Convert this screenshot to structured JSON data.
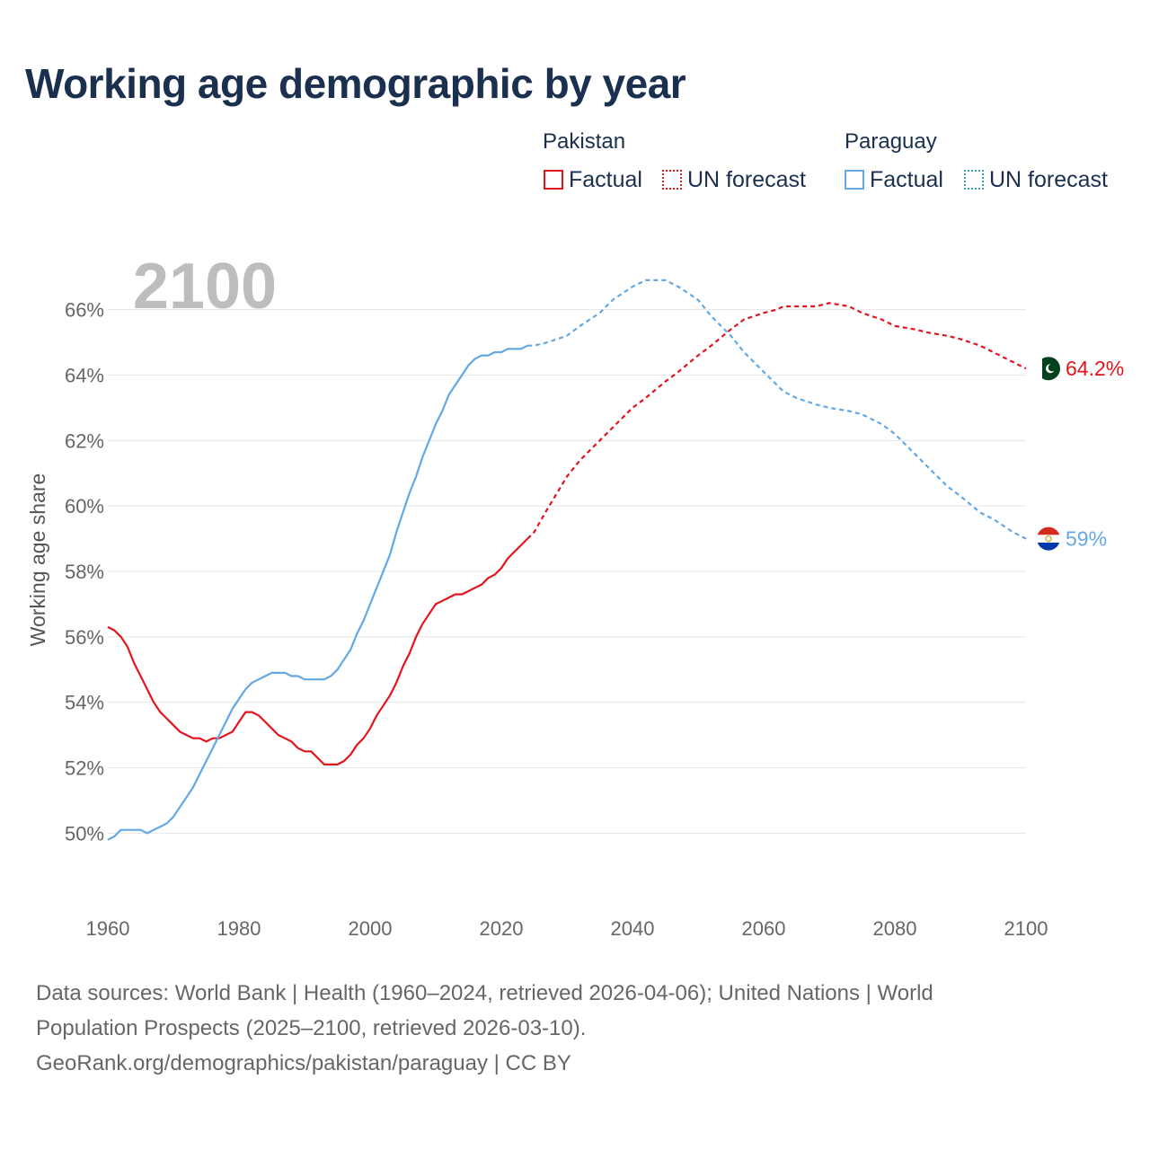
{
  "header": {
    "title": "Working age demographic by year"
  },
  "legend": {
    "groups": [
      {
        "name": "Pakistan",
        "factual_label": "Factual",
        "forecast_label": "UN forecast",
        "color": "#e3141c"
      },
      {
        "name": "Paraguay",
        "factual_label": "Factual",
        "forecast_label": "UN forecast",
        "color": "#62a8e5"
      }
    ]
  },
  "footer": {
    "sources_line1": "Data sources: World Bank | Health (1960–2024, retrieved 2026-04-06); United Nations | World",
    "sources_line2": "Population Prospects (2025–2100, retrieved 2026-03-10).",
    "url_line": "GeoRank.org/demographics/pakistan/paraguay | CC BY"
  },
  "chart_data": {
    "type": "line",
    "title": "Working age demographic by year",
    "year_watermark": "2100",
    "xlabel": "",
    "ylabel": "Working age share",
    "xlim": [
      1960,
      2100
    ],
    "ylim": [
      48.5,
      67.5
    ],
    "x_ticks": [
      1960,
      1980,
      2000,
      2020,
      2040,
      2060,
      2080,
      2100
    ],
    "y_ticks": [
      50,
      52,
      54,
      56,
      58,
      60,
      62,
      64,
      66
    ],
    "y_tick_labels": [
      "50%",
      "52%",
      "54%",
      "56%",
      "58%",
      "60%",
      "62%",
      "64%",
      "66%"
    ],
    "grid": true,
    "series": [
      {
        "name": "Pakistan",
        "color": "#e3141c",
        "end_label": "64.2%",
        "flag_colors": [
          "#01411c",
          "#ffffff"
        ],
        "factual": {
          "x": [
            1960,
            1961,
            1962,
            1963,
            1964,
            1965,
            1966,
            1967,
            1968,
            1969,
            1970,
            1971,
            1972,
            1973,
            1974,
            1975,
            1976,
            1977,
            1978,
            1979,
            1980,
            1981,
            1982,
            1983,
            1984,
            1985,
            1986,
            1987,
            1988,
            1989,
            1990,
            1991,
            1992,
            1993,
            1994,
            1995,
            1996,
            1997,
            1998,
            1999,
            2000,
            2001,
            2002,
            2003,
            2004,
            2005,
            2006,
            2007,
            2008,
            2009,
            2010,
            2011,
            2012,
            2013,
            2014,
            2015,
            2016,
            2017,
            2018,
            2019,
            2020,
            2021,
            2022,
            2023,
            2024
          ],
          "y": [
            56.3,
            56.2,
            56.0,
            55.7,
            55.2,
            54.8,
            54.4,
            54.0,
            53.7,
            53.5,
            53.3,
            53.1,
            53.0,
            52.9,
            52.9,
            52.8,
            52.9,
            52.9,
            53.0,
            53.1,
            53.4,
            53.7,
            53.7,
            53.6,
            53.4,
            53.2,
            53.0,
            52.9,
            52.8,
            52.6,
            52.5,
            52.5,
            52.3,
            52.1,
            52.1,
            52.1,
            52.2,
            52.4,
            52.7,
            52.9,
            53.2,
            53.6,
            53.9,
            54.2,
            54.6,
            55.1,
            55.5,
            56.0,
            56.4,
            56.7,
            57.0,
            57.1,
            57.2,
            57.3,
            57.3,
            57.4,
            57.5,
            57.6,
            57.8,
            57.9,
            58.1,
            58.4,
            58.6,
            58.8,
            59.0
          ]
        },
        "forecast": {
          "x": [
            2024,
            2025,
            2027,
            2030,
            2032,
            2035,
            2037,
            2040,
            2042,
            2045,
            2047,
            2050,
            2052,
            2055,
            2057,
            2060,
            2062,
            2063,
            2065,
            2068,
            2070,
            2073,
            2075,
            2078,
            2080,
            2083,
            2085,
            2088,
            2090,
            2093,
            2095,
            2098,
            2100
          ],
          "y": [
            59.0,
            59.2,
            59.9,
            60.9,
            61.4,
            62.0,
            62.4,
            63.0,
            63.3,
            63.8,
            64.1,
            64.6,
            64.9,
            65.4,
            65.7,
            65.9,
            66.0,
            66.1,
            66.1,
            66.1,
            66.2,
            66.1,
            65.9,
            65.7,
            65.5,
            65.4,
            65.3,
            65.2,
            65.1,
            64.9,
            64.7,
            64.4,
            64.2
          ]
        }
      },
      {
        "name": "Paraguay",
        "color": "#62a8e5",
        "end_label": "59%",
        "flag_colors": [
          "#d52b1e",
          "#ffffff",
          "#0038a8"
        ],
        "factual": {
          "x": [
            1960,
            1961,
            1962,
            1963,
            1964,
            1965,
            1966,
            1967,
            1968,
            1969,
            1970,
            1971,
            1972,
            1973,
            1974,
            1975,
            1976,
            1977,
            1978,
            1979,
            1980,
            1981,
            1982,
            1983,
            1984,
            1985,
            1986,
            1987,
            1988,
            1989,
            1990,
            1991,
            1992,
            1993,
            1994,
            1995,
            1996,
            1997,
            1998,
            1999,
            2000,
            2001,
            2002,
            2003,
            2004,
            2005,
            2006,
            2007,
            2008,
            2009,
            2010,
            2011,
            2012,
            2013,
            2014,
            2015,
            2016,
            2017,
            2018,
            2019,
            2020,
            2021,
            2022,
            2023,
            2024
          ],
          "y": [
            49.8,
            49.9,
            50.1,
            50.1,
            50.1,
            50.1,
            50.0,
            50.1,
            50.2,
            50.3,
            50.5,
            50.8,
            51.1,
            51.4,
            51.8,
            52.2,
            52.6,
            53.0,
            53.4,
            53.8,
            54.1,
            54.4,
            54.6,
            54.7,
            54.8,
            54.9,
            54.9,
            54.9,
            54.8,
            54.8,
            54.7,
            54.7,
            54.7,
            54.7,
            54.8,
            55.0,
            55.3,
            55.6,
            56.1,
            56.5,
            57.0,
            57.5,
            58.0,
            58.5,
            59.2,
            59.8,
            60.4,
            60.9,
            61.5,
            62.0,
            62.5,
            62.9,
            63.4,
            63.7,
            64.0,
            64.3,
            64.5,
            64.6,
            64.6,
            64.7,
            64.7,
            64.8,
            64.8,
            64.8,
            64.9
          ]
        },
        "forecast": {
          "x": [
            2024,
            2025,
            2027,
            2030,
            2032,
            2035,
            2037,
            2040,
            2042,
            2043,
            2045,
            2047,
            2050,
            2052,
            2055,
            2057,
            2060,
            2062,
            2063,
            2065,
            2068,
            2070,
            2073,
            2075,
            2078,
            2080,
            2083,
            2085,
            2088,
            2090,
            2093,
            2095,
            2098,
            2100
          ],
          "y": [
            64.9,
            64.9,
            65.0,
            65.2,
            65.5,
            65.9,
            66.3,
            66.7,
            66.9,
            66.9,
            66.9,
            66.7,
            66.3,
            65.8,
            65.2,
            64.7,
            64.1,
            63.7,
            63.5,
            63.3,
            63.1,
            63.0,
            62.9,
            62.8,
            62.5,
            62.2,
            61.6,
            61.2,
            60.6,
            60.3,
            59.8,
            59.6,
            59.2,
            59.0
          ]
        }
      }
    ]
  }
}
